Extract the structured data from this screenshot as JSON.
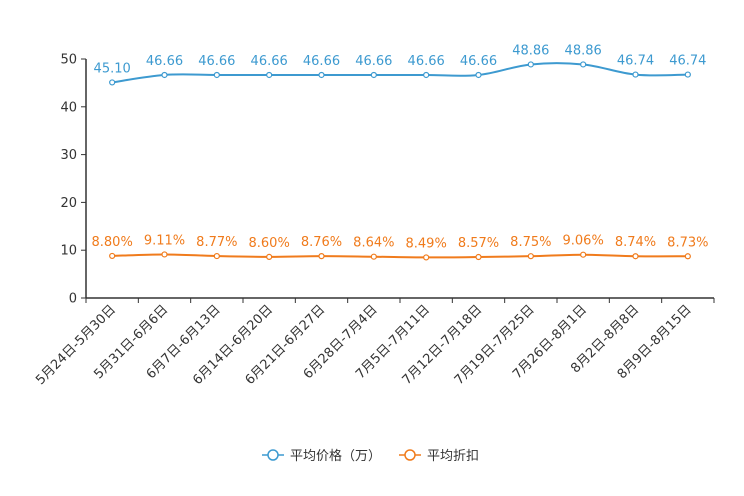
{
  "chart_data": {
    "type": "line",
    "categories": [
      "5月24日-5月30日",
      "5月31日-6月6日",
      "6月7日-6月13日",
      "6月14日-6月20日",
      "6月21日-6月27日",
      "6月28日-7月4日",
      "7月5日-7月11日",
      "7月12日-7月18日",
      "7月19日-7月25日",
      "7月26日-8月1日",
      "8月2日-8月8日",
      "8月9日-8月15日"
    ],
    "series": [
      {
        "name": "平均价格（万）",
        "color": "#3d9ad0",
        "values": [
          45.1,
          46.66,
          46.66,
          46.66,
          46.66,
          46.66,
          46.66,
          46.66,
          48.86,
          48.86,
          46.74,
          46.74
        ],
        "labels": [
          "45.10",
          "46.66",
          "46.66",
          "46.66",
          "46.66",
          "46.66",
          "46.66",
          "46.66",
          "48.86",
          "48.86",
          "46.74",
          "46.74"
        ]
      },
      {
        "name": "平均折扣",
        "color": "#f07b1c",
        "values": [
          8.8,
          9.11,
          8.77,
          8.6,
          8.76,
          8.64,
          8.49,
          8.57,
          8.75,
          9.06,
          8.74,
          8.73
        ],
        "labels": [
          "8.80%",
          "9.11%",
          "8.77%",
          "8.60%",
          "8.76%",
          "8.64%",
          "8.49%",
          "8.57%",
          "8.75%",
          "9.06%",
          "8.74%",
          "8.73%"
        ]
      }
    ],
    "yticks": [
      "0",
      "10",
      "20",
      "30",
      "40",
      "50"
    ],
    "ylim": [
      0,
      50
    ],
    "title": "",
    "xlabel": "",
    "ylabel": "",
    "legend_position": "bottom-center"
  }
}
